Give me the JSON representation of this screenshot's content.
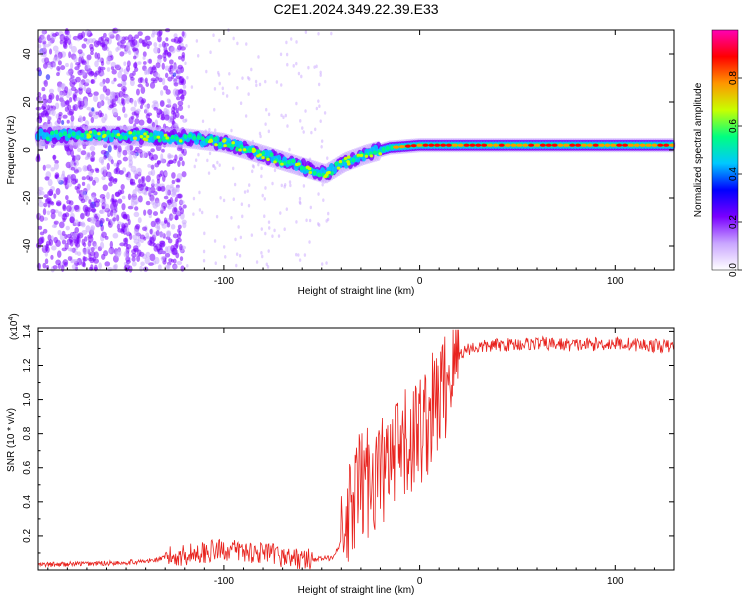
{
  "title": "C2E1.2024.349.22.39.E33",
  "chart_data": [
    {
      "type": "heatmap",
      "xlabel": "Height of straight line (km)",
      "ylabel": "Frequency (Hz)",
      "xlim": [
        -195,
        130
      ],
      "ylim": [
        -50,
        50
      ],
      "xticks": [
        -100,
        0,
        100
      ],
      "yticks": [
        -40,
        -20,
        0,
        20,
        40
      ],
      "grid": false,
      "colorbar": {
        "label": "Normalized spectral amplitude",
        "range": [
          0,
          1
        ],
        "ticks": [
          "0.0",
          "0.2",
          "0.4",
          "0.6",
          "0.8"
        ],
        "colors": [
          "#ffffff",
          "#c9a6ff",
          "#7a00ff",
          "#0000ff",
          "#00c8ff",
          "#00ff80",
          "#c8ff00",
          "#ff9600",
          "#ff0000",
          "#ff00b4"
        ]
      },
      "ridge": {
        "description_values": [
          {
            "x": -190,
            "y": 6
          },
          {
            "x": -150,
            "y": 6
          },
          {
            "x": -120,
            "y": 5
          },
          {
            "x": -100,
            "y": 3
          },
          {
            "x": -80,
            "y": -2
          },
          {
            "x": -60,
            "y": -7
          },
          {
            "x": -48,
            "y": -10
          },
          {
            "x": -38,
            "y": -5
          },
          {
            "x": -28,
            "y": -2
          },
          {
            "x": -15,
            "y": 1
          },
          {
            "x": 0,
            "y": 2
          },
          {
            "x": 50,
            "y": 2
          },
          {
            "x": 90,
            "y": 2
          },
          {
            "x": 130,
            "y": 2
          }
        ]
      }
    },
    {
      "type": "line",
      "xlabel": "Height of straight line (km)",
      "ylabel": "SNR (10 * v/v)",
      "yscale_label": "(x10",
      "yscale_exponent": "4",
      "xlim": [
        -195,
        130
      ],
      "ylim": [
        0,
        1.42
      ],
      "xticks": [
        -100,
        0,
        100
      ],
      "yticks": [
        "0.2",
        "0.4",
        "0.6",
        "0.8",
        "1.0",
        "1.2",
        "1.4"
      ],
      "grid": false,
      "series": [
        {
          "color": "#e8231e",
          "trend": [
            {
              "x": -195,
              "y": 0.03
            },
            {
              "x": -160,
              "y": 0.04
            },
            {
              "x": -140,
              "y": 0.05
            },
            {
              "x": -120,
              "y": 0.09
            },
            {
              "x": -100,
              "y": 0.12
            },
            {
              "x": -80,
              "y": 0.1
            },
            {
              "x": -60,
              "y": 0.06
            },
            {
              "x": -45,
              "y": 0.07
            },
            {
              "x": -38,
              "y": 0.2
            },
            {
              "x": -32,
              "y": 0.45
            },
            {
              "x": -25,
              "y": 0.55
            },
            {
              "x": -15,
              "y": 0.6
            },
            {
              "x": -5,
              "y": 0.75
            },
            {
              "x": 5,
              "y": 0.9
            },
            {
              "x": 12,
              "y": 1.05
            },
            {
              "x": 18,
              "y": 1.25
            },
            {
              "x": 25,
              "y": 1.3
            },
            {
              "x": 40,
              "y": 1.32
            },
            {
              "x": 60,
              "y": 1.33
            },
            {
              "x": 80,
              "y": 1.32
            },
            {
              "x": 100,
              "y": 1.33
            },
            {
              "x": 130,
              "y": 1.31
            }
          ]
        }
      ]
    }
  ]
}
